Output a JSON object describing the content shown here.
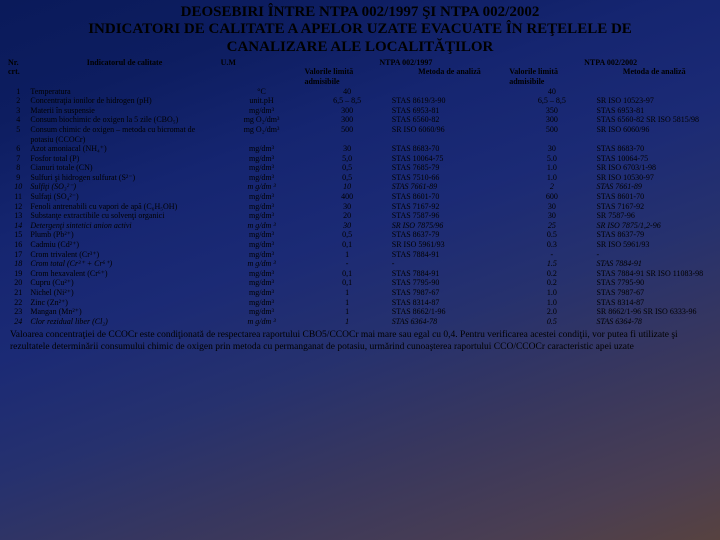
{
  "title_l1": "DEOSEBIRI ÎNTRE NTPA 002/1997 ŞI NTPA 002/2002",
  "title_l2": "INDICATORI DE CALITATE A APELOR UZATE EVACUATE ÎN REŢELELE DE",
  "title_l3": "CANALIZARE ALE LOCALITĂŢILOR",
  "hdr": {
    "nr": "Nr. crt.",
    "ind": "Indicatorul de calitate",
    "um": "U.M",
    "g1": "NTPA 002/1997",
    "g2": "NTPA 002/2002",
    "val": "Valorile limită admisibile",
    "met": "Metoda de analiză"
  },
  "rows": [
    {
      "n": "1",
      "ind": "Temperatura",
      "um": "°C",
      "v1": "40",
      "m1": "",
      "v2": "40",
      "m2": "",
      "it": false
    },
    {
      "n": "2",
      "ind": "Concentraţia ionilor de hidrogen (pH)",
      "um": "unit.pH",
      "v1": "6,5 – 8,5",
      "m1": "STAS 8619/3-90",
      "v2": "6,5 – 8,5",
      "m2": "SR ISO 10523-97",
      "it": false
    },
    {
      "n": "3",
      "ind": "Materii în suspensie",
      "um": "mg/dm³",
      "v1": "300",
      "m1": "STAS 6953-81",
      "v2": "350",
      "m2": "STAS 6953-81",
      "it": false
    },
    {
      "n": "4",
      "ind": "Consum biochimic de oxigen la 5 zile (CBO₅)",
      "um": "mg O₂/dm³",
      "v1": "300",
      "m1": "STAS 6560-82",
      "v2": "300",
      "m2": "STAS 6560-82 SR ISO 5815/98",
      "it": false
    },
    {
      "n": "5",
      "ind": "Consum chimic de oxigen – metoda cu bicromat de potasiu (CCOCr)",
      "um": "mg O₂/dm³",
      "v1": "500",
      "m1": "SR ISO 6060/96",
      "v2": "500",
      "m2": "SR ISO 6060/96",
      "it": false
    },
    {
      "n": "6",
      "ind": "Azot amoniacal (NH₄⁺)",
      "um": "mg/dm³",
      "v1": "30",
      "m1": "STAS 8683-70",
      "v2": "30",
      "m2": "STAS 8683-70",
      "it": false
    },
    {
      "n": "7",
      "ind": "Fosfor total (P)",
      "um": "mg/dm³",
      "v1": "5,0",
      "m1": "STAS 10064-75",
      "v2": "5.0",
      "m2": "STAS 10064-75",
      "it": false
    },
    {
      "n": "8",
      "ind": "Cianuri totale (CN)",
      "um": "mg/dm³",
      "v1": "0,5",
      "m1": "STAS 7685-79",
      "v2": "1.0",
      "m2": "SR ISO 6703/1-98",
      "it": false
    },
    {
      "n": "9",
      "ind": "Sulfuri şi hidrogen sulfurat (S²⁻)",
      "um": "mg/dm³",
      "v1": "0,5",
      "m1": "STAS 7510-66",
      "v2": "1.0",
      "m2": "SR ISO 10530-97",
      "it": false
    },
    {
      "n": "10",
      "ind": "Sulfiţi (SO₃²⁻)",
      "um": "m g/dm ³",
      "v1": "10",
      "m1": "STAS 7661-89",
      "v2": "2",
      "m2": "STAS 7661-89",
      "it": true
    },
    {
      "n": "11",
      "ind": "Sulfaţi (SO₄²⁻)",
      "um": "mg/dm³",
      "v1": "400",
      "m1": "STAS 8601-70",
      "v2": "600",
      "m2": "STAS 8601-70",
      "it": false
    },
    {
      "n": "12",
      "ind": "Fenoli antrenabili cu vapori de apă (C₆H₅OH)",
      "um": "mg/dm³",
      "v1": "30",
      "m1": "STAS 7167-92",
      "v2": "30",
      "m2": "STAS 7167-92",
      "it": false
    },
    {
      "n": "13",
      "ind": "Substanţe extractibile cu solvenţi organici",
      "um": "mg/dm³",
      "v1": "20",
      "m1": "STAS 7587-96",
      "v2": "30",
      "m2": "SR 7587-96",
      "it": false
    },
    {
      "n": "14",
      "ind": "Detergenţi sintetici anion activi",
      "um": "m g/dm ³",
      "v1": "30",
      "m1": "SR ISO 7875/96",
      "v2": "25",
      "m2": "SR ISO 7875/1,2-96",
      "it": true
    },
    {
      "n": "15",
      "ind": "Plumb (Pb²⁺)",
      "um": "mg/dm³",
      "v1": "0,5",
      "m1": "STAS 8637-79",
      "v2": "0.5",
      "m2": "STAS 8637-79",
      "it": false
    },
    {
      "n": "16",
      "ind": "Cadmiu (Cd²⁺)",
      "um": "mg/dm³",
      "v1": "0,1",
      "m1": "SR ISO 5961/93",
      "v2": "0.3",
      "m2": "SR ISO 5961/93",
      "it": false
    },
    {
      "n": "17",
      "ind": "Crom trivalent (Cr³⁺)",
      "um": "mg/dm³",
      "v1": "1",
      "m1": "STAS 7884-91",
      "v2": "-",
      "m2": "-",
      "it": false
    },
    {
      "n": "18",
      "ind": "Crom total (Cr³⁺ + Cr⁶⁺)",
      "um": "m g/dm ³",
      "v1": "-",
      "m1": "-",
      "v2": "1.5",
      "m2": "STAS 7884-91",
      "it": true
    },
    {
      "n": "19",
      "ind": "Crom hexavalent (Cr⁶⁺)",
      "um": "mg/dm³",
      "v1": "0,1",
      "m1": "STAS 7884-91",
      "v2": "0.2",
      "m2": "STAS 7884-91 SR ISO 11083-98",
      "it": false
    },
    {
      "n": "20",
      "ind": "Cupru (Cu²⁺)",
      "um": "mg/dm³",
      "v1": "0,1",
      "m1": "STAS 7795-90",
      "v2": "0.2",
      "m2": "STAS 7795-90",
      "it": false
    },
    {
      "n": "21",
      "ind": "Nichel (Ni²⁺)",
      "um": "mg/dm³",
      "v1": "1",
      "m1": "STAS 7987-67",
      "v2": "1.0",
      "m2": "STAS 7987-67",
      "it": false
    },
    {
      "n": "22",
      "ind": "Zinc (Zn²⁺)",
      "um": "mg/dm³",
      "v1": "1",
      "m1": "STAS 8314-87",
      "v2": "1.0",
      "m2": "STAS 8314-87",
      "it": false
    },
    {
      "n": "23",
      "ind": "Mangan (Mn²⁺)",
      "um": "mg/dm³",
      "v1": "1",
      "m1": "STAS 8662/1-96",
      "v2": "2.0",
      "m2": "SR 8662/1-96 SR ISO 6333-96",
      "it": false
    },
    {
      "n": "24",
      "ind": "Clor rezidual liber (Cl₂)",
      "um": "m g/dm ³",
      "v1": "1",
      "m1": "STAS 6364-78",
      "v2": "0.5",
      "m2": "STAS 6364-78",
      "it": true
    }
  ],
  "footnote": "Valoarea concentraţiei de CCOCr este condiţionată de respectarea raportului CBO5/CCOCr mai mare sau egal cu 0,4. Pentru verificarea acestei condiţii, vor putea fi utilizate şi rezultatele determinării consumului chimic de oxigen prin metoda cu permanganat de potasiu, urmărind cunoaşterea raportului CCO/CCOCr caracteristic apei uzate"
}
